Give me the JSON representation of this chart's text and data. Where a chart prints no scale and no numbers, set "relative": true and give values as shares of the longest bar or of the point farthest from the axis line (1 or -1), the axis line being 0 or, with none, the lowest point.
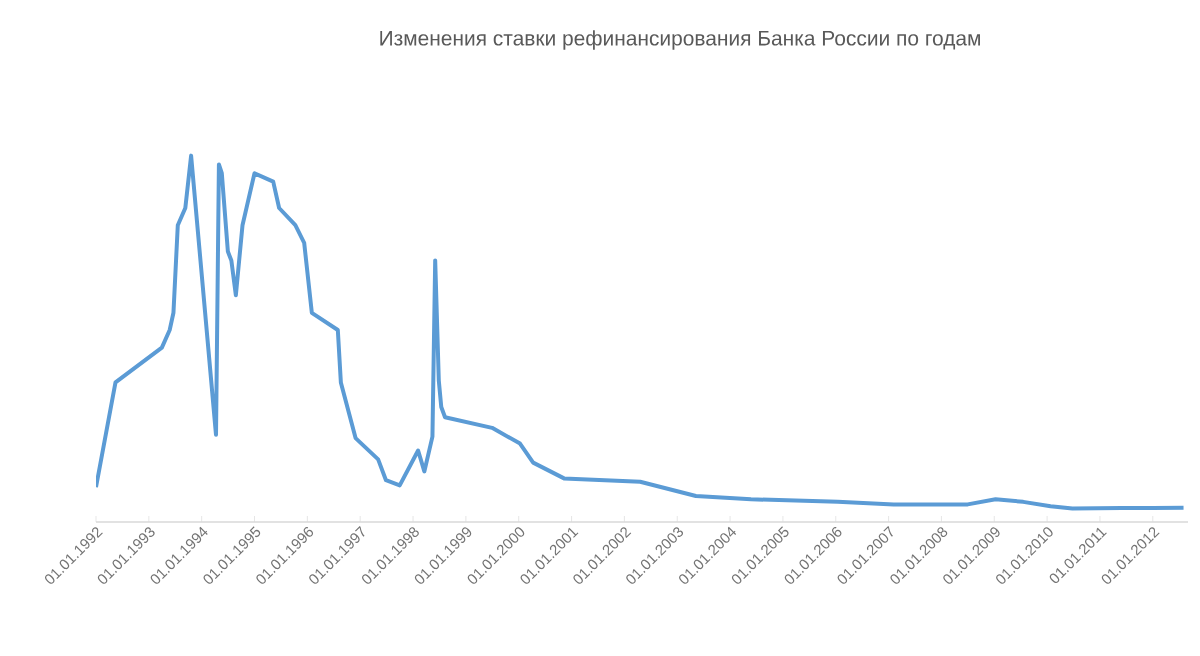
{
  "chart_data": {
    "type": "line",
    "title": "Изменения ставки рефинансирования Банка России по годам",
    "relative": true,
    "color": "#5b9bd5",
    "line_style": "solid",
    "x": [
      "1992-01-01",
      "1992-05-15",
      "1993-04-01",
      "1993-05-25",
      "1993-06-20",
      "1993-07-20",
      "1993-09-10",
      "1993-10-20",
      "1994-04-10",
      "1994-04-30",
      "1994-05-20",
      "1994-07-01",
      "1994-07-25",
      "1994-08-25",
      "1994-10-10",
      "1995-01-01",
      "1995-05-10",
      "1995-06-20",
      "1995-10-10",
      "1995-12-10",
      "1996-02-01",
      "1996-07-30",
      "1996-08-20",
      "1996-11-30",
      "1997-05-05",
      "1997-06-28",
      "1997-10-01",
      "1998-02-05",
      "1998-03-20",
      "1998-05-15",
      "1998-06-03",
      "1998-06-28",
      "1998-07-15",
      "1998-08-10",
      "1999-07-01",
      "2000-01-10",
      "2000-04-10",
      "2000-11-10",
      "2002-04-20",
      "2003-05-10",
      "2004-05-25",
      "2006-01-15",
      "2007-02-05",
      "2008-07-01",
      "2009-01-10",
      "2009-07-20",
      "2010-01-25",
      "2010-06-25",
      "2011-06-01",
      "2012-01-01",
      "2012-08-01"
    ],
    "values": [
      0.095,
      0.381,
      0.476,
      0.524,
      0.571,
      0.81,
      0.857,
      1,
      0.238,
      0.976,
      0.952,
      0.738,
      0.714,
      0.619,
      0.81,
      0.952,
      0.929,
      0.857,
      0.81,
      0.762,
      0.571,
      0.524,
      0.381,
      0.229,
      0.171,
      0.114,
      0.1,
      0.195,
      0.138,
      0.233,
      0.714,
      0.386,
      0.314,
      0.286,
      0.257,
      0.214,
      0.162,
      0.119,
      0.11,
      0.071,
      0.062,
      0.055,
      0.048,
      0.048,
      0.062,
      0.055,
      0.043,
      0.037,
      0.038,
      0.038,
      0.039
    ],
    "xlim": [
      "1992-01-01",
      "2012-09-01"
    ],
    "xticks": [
      {
        "value": "1992-01-01",
        "label": "01.01.1992"
      },
      {
        "value": "1993-01-01",
        "label": "01.01.1993"
      },
      {
        "value": "1994-01-01",
        "label": "01.01.1994"
      },
      {
        "value": "1995-01-01",
        "label": "01.01.1995"
      },
      {
        "value": "1996-01-01",
        "label": "01.01.1996"
      },
      {
        "value": "1997-01-01",
        "label": "01.01.1997"
      },
      {
        "value": "1998-01-01",
        "label": "01.01.1998"
      },
      {
        "value": "1999-01-01",
        "label": "01.01.1999"
      },
      {
        "value": "2000-01-01",
        "label": "01.01.2000"
      },
      {
        "value": "2001-01-01",
        "label": "01.01.2001"
      },
      {
        "value": "2002-01-01",
        "label": "01.01.2002"
      },
      {
        "value": "2003-01-01",
        "label": "01.01.2003"
      },
      {
        "value": "2004-01-01",
        "label": "01.01.2004"
      },
      {
        "value": "2005-01-01",
        "label": "01.01.2005"
      },
      {
        "value": "2006-01-01",
        "label": "01.01.2006"
      },
      {
        "value": "2007-01-01",
        "label": "01.01.2007"
      },
      {
        "value": "2008-01-01",
        "label": "01.01.2008"
      },
      {
        "value": "2009-01-01",
        "label": "01.01.2009"
      },
      {
        "value": "2010-01-01",
        "label": "01.01.2010"
      },
      {
        "value": "2011-01-01",
        "label": "01.01.2011"
      },
      {
        "value": "2012-01-01",
        "label": "01.01.2012"
      }
    ]
  }
}
